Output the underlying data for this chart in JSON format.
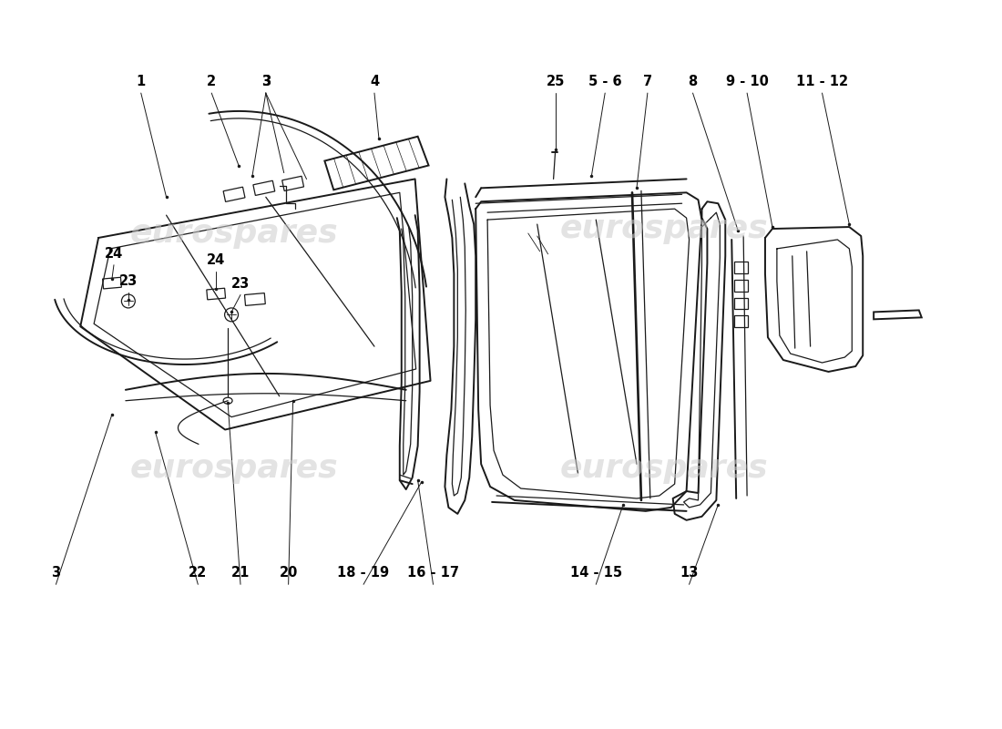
{
  "bg_color": "#ffffff",
  "line_color": "#1a1a1a",
  "lw_main": 1.4,
  "lw_thin": 0.9,
  "lw_detail": 0.6,
  "watermark_text": "eurospares",
  "watermark_fontsize": 26,
  "label_fontsize": 10.5
}
